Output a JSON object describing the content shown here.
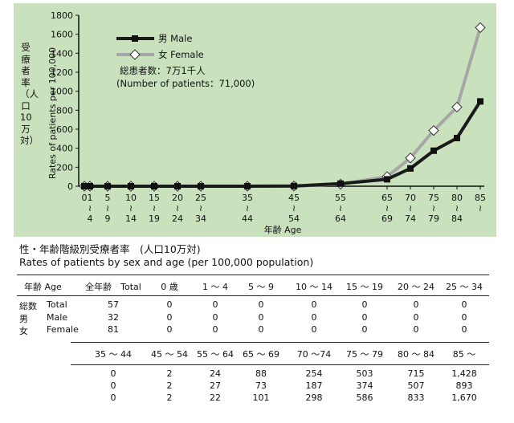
{
  "chart_data": {
    "type": "line",
    "ylabel_jp": "受療者率（人口10万対）",
    "ylabel_en": "Rates of patients per 100,000",
    "xlabel": "年齢 Age",
    "ylim": [
      0,
      1800
    ],
    "yticks": [
      "0",
      "200",
      "400",
      "600",
      "800",
      "1000",
      "1200",
      "1400",
      "1600",
      "1800"
    ],
    "age_groups": [
      {
        "top": "0",
        "bottom": ""
      },
      {
        "top": "1",
        "bottom": "4"
      },
      {
        "top": "5",
        "bottom": "9"
      },
      {
        "top": "10",
        "bottom": "14"
      },
      {
        "top": "15",
        "bottom": "19"
      },
      {
        "top": "20",
        "bottom": "24"
      },
      {
        "top": "25",
        "bottom": "34"
      },
      {
        "top": "35",
        "bottom": "44"
      },
      {
        "top": "45",
        "bottom": "54"
      },
      {
        "top": "55",
        "bottom": "64"
      },
      {
        "top": "65",
        "bottom": "69"
      },
      {
        "top": "70",
        "bottom": "74"
      },
      {
        "top": "75",
        "bottom": "79"
      },
      {
        "top": "80",
        "bottom": "84"
      },
      {
        "top": "85",
        "bottom": ""
      }
    ],
    "series": [
      {
        "name": "男 Male",
        "color": "#1a1a1a",
        "marker": "square",
        "values": [
          0,
          0,
          0,
          0,
          0,
          0,
          0,
          0,
          2,
          27,
          73,
          187,
          374,
          507,
          893
        ]
      },
      {
        "name": "女 Female",
        "color": "#a6a6a6",
        "marker": "diamond",
        "values": [
          0,
          0,
          0,
          0,
          0,
          0,
          0,
          0,
          2,
          22,
          101,
          298,
          586,
          833,
          1670
        ]
      }
    ],
    "legend_position": "top-left",
    "annotation": {
      "line1": "総患者数：7万1千人",
      "line2": "(Number of patients：71,000)"
    }
  },
  "table": {
    "title_jp": "性・年齢階級別受療者率　(人口10万対)",
    "title_en": "Rates of patients by sex and age (per 100,000 population)",
    "header1": [
      "年齢 Age",
      "全年齢　Total",
      "0 歳",
      "1 ～ 4",
      "5 ～ 9",
      "10 ～ 14",
      "15 ～ 19",
      "20 ～ 24",
      "25 ～ 34"
    ],
    "rows1": [
      {
        "jp": "総数",
        "en": "Total",
        "values": [
          "57",
          "0",
          "0",
          "0",
          "0",
          "0",
          "0",
          "0"
        ]
      },
      {
        "jp": "男",
        "en": "Male",
        "values": [
          "32",
          "0",
          "0",
          "0",
          "0",
          "0",
          "0",
          "0"
        ]
      },
      {
        "jp": "女",
        "en": "Female",
        "values": [
          "81",
          "0",
          "0",
          "0",
          "0",
          "0",
          "0",
          "0"
        ]
      }
    ],
    "header2": [
      "35 ～ 44",
      "45 ～ 54",
      "55 ～ 64",
      "65 ～ 69",
      "70 ～74",
      "75 ～ 79",
      "80 ～ 84",
      "85 ～"
    ],
    "rows2": [
      [
        "0",
        "2",
        "24",
        "88",
        "254",
        "503",
        "715",
        "1,428"
      ],
      [
        "0",
        "2",
        "27",
        "73",
        "187",
        "374",
        "507",
        "893"
      ],
      [
        "0",
        "2",
        "22",
        "101",
        "298",
        "586",
        "833",
        "1,670"
      ]
    ]
  }
}
